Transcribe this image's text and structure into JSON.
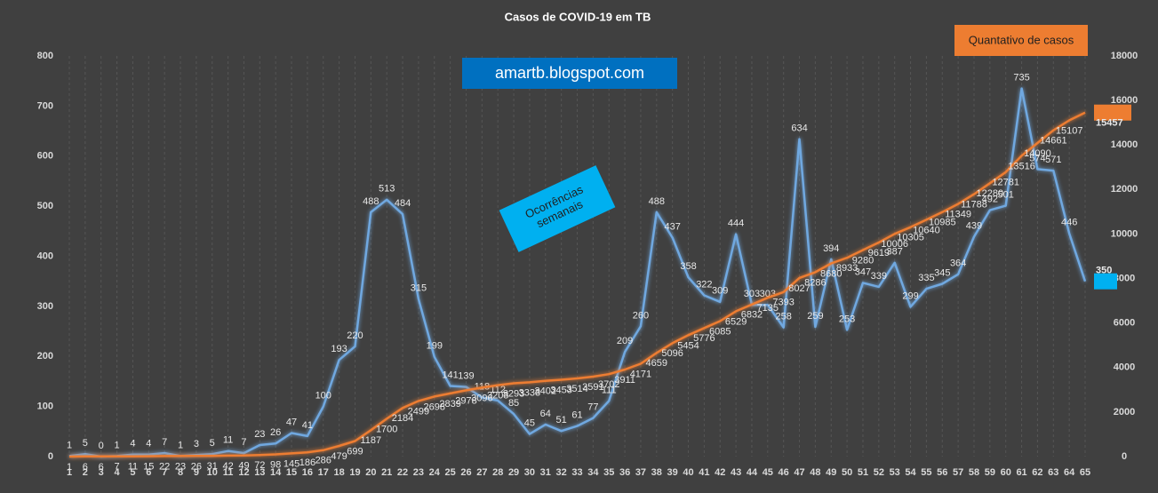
{
  "chart_data": {
    "type": "line",
    "title": "Casos de COVID-19 em TB",
    "x": [
      1,
      2,
      3,
      4,
      5,
      6,
      7,
      8,
      9,
      10,
      11,
      12,
      13,
      14,
      15,
      16,
      17,
      18,
      19,
      20,
      21,
      22,
      23,
      24,
      25,
      26,
      27,
      28,
      29,
      30,
      31,
      32,
      33,
      34,
      35,
      36,
      37,
      38,
      39,
      40,
      41,
      42,
      43,
      44,
      45,
      46,
      47,
      48,
      49,
      50,
      51,
      52,
      53,
      54,
      55,
      56,
      57,
      58,
      59,
      60,
      61,
      62,
      63,
      64,
      65
    ],
    "xlim": [
      1,
      65
    ],
    "ylim": [
      0,
      800
    ],
    "yticks": [
      0,
      100,
      200,
      300,
      400,
      500,
      600,
      700,
      800
    ],
    "y2lim": [
      0,
      18000
    ],
    "y2ticks": [
      0,
      2000,
      4000,
      6000,
      8000,
      10000,
      12000,
      14000,
      16000,
      18000
    ],
    "grid": true,
    "series": [
      {
        "name": "Ocorrências semanais",
        "color": "#6fa8e0",
        "values": [
          1,
          5,
          0,
          1,
          4,
          4,
          7,
          1,
          3,
          5,
          11,
          7,
          23,
          26,
          47,
          41,
          100,
          193,
          220,
          488,
          513,
          484,
          315,
          199,
          141,
          139,
          118,
          112,
          85,
          45,
          64,
          51,
          61,
          77,
          111,
          209,
          260,
          488,
          437,
          358,
          322,
          309,
          444,
          303,
          303,
          258,
          634,
          259,
          394,
          253,
          347,
          339,
          387,
          299,
          335,
          345,
          364,
          439,
          492,
          501,
          735,
          574,
          571,
          446,
          350
        ]
      },
      {
        "name": "Quantativo de casos",
        "color": "#ed7d31",
        "axis": "y2",
        "values": [
          1,
          6,
          6,
          7,
          11,
          15,
          22,
          23,
          26,
          31,
          42,
          49,
          72,
          98,
          145,
          186,
          286,
          479,
          699,
          1187,
          1700,
          2184,
          2499,
          2698,
          2839,
          2978,
          3096,
          3208,
          3293,
          3338,
          3402,
          3453,
          3514,
          3591,
          3702,
          3911,
          4171,
          4659,
          5096,
          5454,
          5776,
          6085,
          6529,
          6832,
          7135,
          7393,
          8027,
          8286,
          8680,
          8933,
          9280,
          9619,
          10006,
          10305,
          10640,
          10985,
          11349,
          11788,
          12280,
          12781,
          13516,
          14090,
          14661,
          15107,
          15457
        ]
      }
    ],
    "annotations": [
      "amartb.blogspot.com"
    ]
  }
}
